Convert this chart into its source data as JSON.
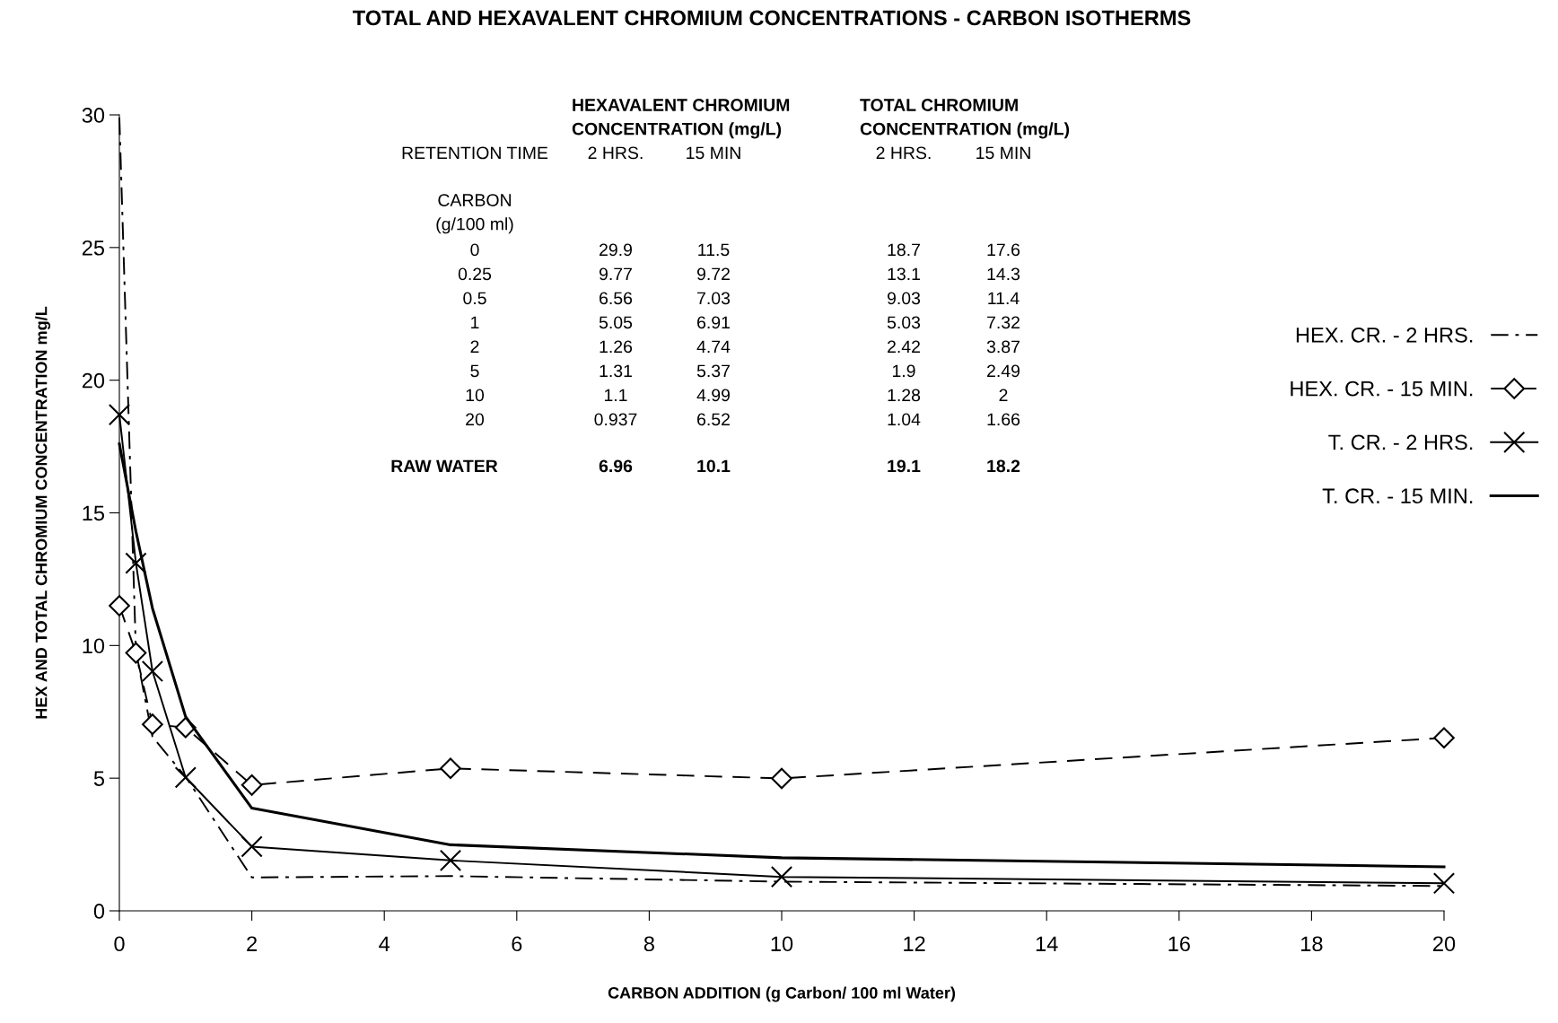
{
  "chart_data": {
    "type": "line",
    "title": "TOTAL AND HEXAVALENT CHROMIUM CONCENTRATIONS - CARBON ISOTHERMS",
    "xlabel": "CARBON ADDITION (g Carbon/ 100 ml Water)",
    "ylabel": "HEX AND TOTAL CHROMIUM CONCENTRATION mg/L",
    "x": [
      0,
      0.25,
      0.5,
      1,
      2,
      5,
      10,
      20
    ],
    "series": [
      {
        "name": "HEX. CR. - 2 HRS.",
        "color": "#000000",
        "line_style": "dashdot",
        "marker": "none",
        "values": [
          29.9,
          9.77,
          6.56,
          5.05,
          1.26,
          1.31,
          1.1,
          0.937
        ]
      },
      {
        "name": "HEX. CR. - 15 MIN.",
        "color": "#000000",
        "line_style": "dashed",
        "marker": "diamond",
        "values": [
          11.5,
          9.72,
          7.03,
          6.91,
          4.74,
          5.37,
          4.99,
          6.52
        ]
      },
      {
        "name": "T. CR. - 2 HRS.",
        "color": "#000000",
        "line_style": "solid",
        "marker": "cross",
        "values": [
          18.7,
          13.1,
          9.03,
          5.03,
          2.42,
          1.9,
          1.28,
          1.04
        ]
      },
      {
        "name": "T. CR. - 15 MIN.",
        "color": "#000000",
        "line_style": "solid",
        "marker": "none",
        "values": [
          17.6,
          14.3,
          11.4,
          7.32,
          3.87,
          2.49,
          2,
          1.66
        ]
      }
    ],
    "xlim": [
      0,
      20
    ],
    "ylim": [
      0,
      30
    ],
    "xticks": [
      0,
      2,
      4,
      6,
      8,
      10,
      12,
      14,
      16,
      18,
      20
    ],
    "yticks": [
      0,
      5,
      10,
      15,
      20,
      25,
      30
    ],
    "grid": false,
    "legend": "right",
    "annotations": [
      "HEXAVALENT CHROMIUM\nCONCENTRATION (mg/L)",
      "TOTAL CHROMIUM\nCONCENTRATION (mg/L)",
      "RETENTION TIME",
      "2 HRS.",
      "15 MIN",
      "2 HRS.",
      "15 MIN",
      "CARBON\n(g/100 ml)",
      "0",
      "29.9",
      "11.5",
      "18.7",
      "17.6",
      "0.25",
      "9.77",
      "9.72",
      "13.1",
      "14.3",
      "0.5",
      "6.56",
      "7.03",
      "9.03",
      "11.4",
      "1",
      "5.05",
      "6.91",
      "5.03",
      "7.32",
      "2",
      "1.26",
      "4.74",
      "2.42",
      "3.87",
      "5",
      "1.31",
      "5.37",
      "1.9",
      "2.49",
      "10",
      "1.1",
      "4.99",
      "1.28",
      "2",
      "20",
      "0.937",
      "6.52",
      "1.04",
      "1.66",
      "RAW WATER",
      "6.96",
      "10.1",
      "19.1",
      "18.2"
    ]
  }
}
